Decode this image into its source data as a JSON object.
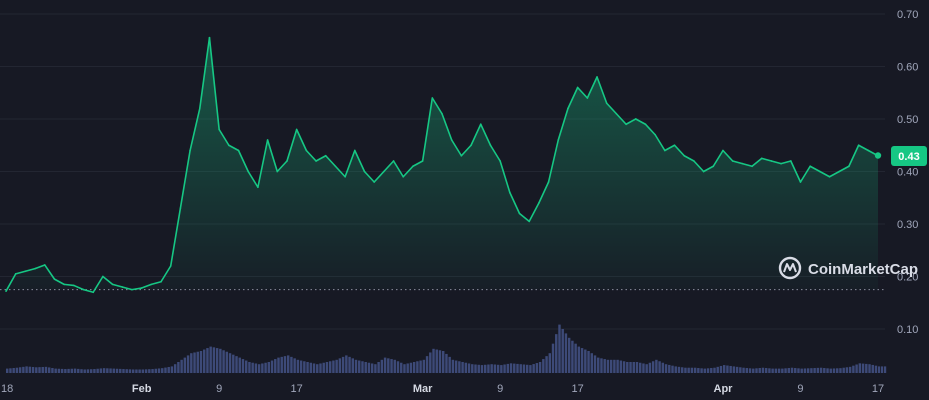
{
  "watermark": "CoinMarketCap",
  "current_price_label": "0.43",
  "colors": {
    "background": "#171924",
    "up": "#16c784",
    "down": "#ea3943",
    "volume": "#3d4a78",
    "grid": "#232632"
  },
  "chart_data": {
    "type": "line",
    "title": "",
    "xlabel": "",
    "ylabel": "",
    "ylim": [
      0.0,
      0.72
    ],
    "yticks": [
      0.1,
      0.2,
      0.3,
      0.4,
      0.5,
      0.6,
      0.7
    ],
    "ytick_labels": [
      "0.10",
      "0.20",
      "0.30",
      "0.40",
      "0.50",
      "0.60",
      "0.70"
    ],
    "xlim": [
      "2024-01-18",
      "2024-04-17"
    ],
    "xticks": [
      {
        "date": "2024-01-18",
        "label": "18",
        "bold": false
      },
      {
        "date": "2024-02-01",
        "label": "Feb",
        "bold": true
      },
      {
        "date": "2024-02-09",
        "label": "9",
        "bold": false
      },
      {
        "date": "2024-02-17",
        "label": "17",
        "bold": false
      },
      {
        "date": "2024-03-01",
        "label": "Mar",
        "bold": true
      },
      {
        "date": "2024-03-09",
        "label": "9",
        "bold": false
      },
      {
        "date": "2024-03-17",
        "label": "17",
        "bold": false
      },
      {
        "date": "2024-04-01",
        "label": "Apr",
        "bold": true
      },
      {
        "date": "2024-04-09",
        "label": "9",
        "bold": false
      },
      {
        "date": "2024-04-17",
        "label": "17",
        "bold": false
      }
    ],
    "baseline": 0.175,
    "grid": true,
    "series": [
      {
        "x": [
          "2024-01-18",
          "2024-01-19",
          "2024-01-20",
          "2024-01-21",
          "2024-01-22",
          "2024-01-23",
          "2024-01-24",
          "2024-01-25",
          "2024-01-26",
          "2024-01-27",
          "2024-01-28",
          "2024-01-29",
          "2024-01-30",
          "2024-01-31",
          "2024-02-01",
          "2024-02-02",
          "2024-02-03",
          "2024-02-04",
          "2024-02-05",
          "2024-02-06",
          "2024-02-07",
          "2024-02-08",
          "2024-02-09",
          "2024-02-10",
          "2024-02-11",
          "2024-02-12",
          "2024-02-13",
          "2024-02-14",
          "2024-02-15",
          "2024-02-16",
          "2024-02-17",
          "2024-02-18",
          "2024-02-19",
          "2024-02-20",
          "2024-02-21",
          "2024-02-22",
          "2024-02-23",
          "2024-02-24",
          "2024-02-25",
          "2024-02-26",
          "2024-02-27",
          "2024-02-28",
          "2024-02-29",
          "2024-03-01",
          "2024-03-02",
          "2024-03-03",
          "2024-03-04",
          "2024-03-05",
          "2024-03-06",
          "2024-03-07",
          "2024-03-08",
          "2024-03-09",
          "2024-03-10",
          "2024-03-11",
          "2024-03-12",
          "2024-03-13",
          "2024-03-14",
          "2024-03-15",
          "2024-03-16",
          "2024-03-17",
          "2024-03-18",
          "2024-03-19",
          "2024-03-20",
          "2024-03-21",
          "2024-03-22",
          "2024-03-23",
          "2024-03-24",
          "2024-03-25",
          "2024-03-26",
          "2024-03-27",
          "2024-03-28",
          "2024-03-29",
          "2024-03-30",
          "2024-03-31",
          "2024-04-01",
          "2024-04-02",
          "2024-04-03",
          "2024-04-04",
          "2024-04-05",
          "2024-04-06",
          "2024-04-07",
          "2024-04-08",
          "2024-04-09",
          "2024-04-10",
          "2024-04-11",
          "2024-04-12",
          "2024-04-13",
          "2024-04-14",
          "2024-04-15",
          "2024-04-16",
          "2024-04-17"
        ],
        "y": [
          0.172,
          0.205,
          0.21,
          0.215,
          0.222,
          0.195,
          0.185,
          0.183,
          0.175,
          0.17,
          0.2,
          0.185,
          0.18,
          0.175,
          0.178,
          0.185,
          0.19,
          0.22,
          0.33,
          0.44,
          0.52,
          0.655,
          0.48,
          0.45,
          0.44,
          0.4,
          0.37,
          0.46,
          0.4,
          0.42,
          0.48,
          0.44,
          0.42,
          0.43,
          0.41,
          0.39,
          0.44,
          0.4,
          0.38,
          0.4,
          0.42,
          0.39,
          0.41,
          0.42,
          0.54,
          0.51,
          0.46,
          0.43,
          0.45,
          0.49,
          0.45,
          0.42,
          0.36,
          0.32,
          0.305,
          0.34,
          0.38,
          0.46,
          0.52,
          0.56,
          0.54,
          0.58,
          0.53,
          0.51,
          0.49,
          0.5,
          0.49,
          0.47,
          0.44,
          0.45,
          0.43,
          0.42,
          0.4,
          0.41,
          0.44,
          0.42,
          0.415,
          0.41,
          0.425,
          0.42,
          0.415,
          0.42,
          0.38,
          0.41,
          0.4,
          0.39,
          0.4,
          0.41,
          0.45,
          0.44,
          0.43
        ]
      }
    ],
    "volume": {
      "scale_max": 0.125,
      "values": [
        0.01,
        0.012,
        0.015,
        0.013,
        0.014,
        0.01,
        0.009,
        0.01,
        0.008,
        0.009,
        0.011,
        0.01,
        0.009,
        0.008,
        0.008,
        0.009,
        0.011,
        0.015,
        0.03,
        0.045,
        0.05,
        0.06,
        0.055,
        0.045,
        0.035,
        0.025,
        0.02,
        0.025,
        0.035,
        0.04,
        0.03,
        0.025,
        0.02,
        0.025,
        0.03,
        0.04,
        0.03,
        0.025,
        0.02,
        0.035,
        0.03,
        0.02,
        0.025,
        0.03,
        0.055,
        0.05,
        0.03,
        0.025,
        0.02,
        0.018,
        0.02,
        0.018,
        0.022,
        0.02,
        0.018,
        0.025,
        0.045,
        0.11,
        0.08,
        0.06,
        0.05,
        0.035,
        0.03,
        0.03,
        0.025,
        0.025,
        0.02,
        0.03,
        0.02,
        0.015,
        0.012,
        0.012,
        0.01,
        0.012,
        0.018,
        0.015,
        0.012,
        0.01,
        0.012,
        0.01,
        0.01,
        0.012,
        0.01,
        0.011,
        0.012,
        0.01,
        0.011,
        0.014,
        0.022,
        0.02,
        0.015
      ]
    }
  }
}
